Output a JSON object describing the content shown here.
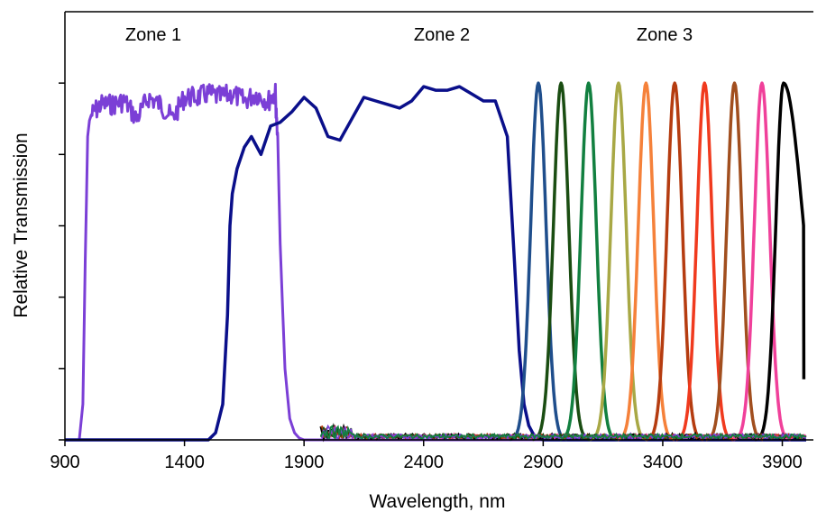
{
  "chart_data": {
    "type": "line",
    "title": "",
    "xlabel": "Wavelength, nm",
    "ylabel": "Relative Transmission",
    "xlim": [
      900,
      4030
    ],
    "ylim": [
      0,
      1.2
    ],
    "x_ticks": [
      "900",
      "1400",
      "1900",
      "2400",
      "2900",
      "3400",
      "3900"
    ],
    "x_tick_values": [
      900,
      1400,
      1900,
      2400,
      2900,
      3400,
      3900
    ],
    "y_tick_values": [
      0,
      0.2,
      0.4,
      0.6,
      0.8,
      1.0
    ],
    "grid": false,
    "legend": "none",
    "annotations": [
      {
        "text": "Zone 1",
        "x": 1250,
        "y": 1.13
      },
      {
        "text": "Zone 2",
        "x": 2420,
        "y": 1.13
      },
      {
        "text": "Zone 3",
        "x": 3300,
        "y": 1.13
      }
    ],
    "series": [
      {
        "color": "#7B3FD6",
        "x": [
          900,
          960,
          975,
          985,
          995,
          1010,
          1050,
          1100,
          1150,
          1200,
          1250,
          1300,
          1350,
          1400,
          1450,
          1500,
          1550,
          1600,
          1650,
          1700,
          1750,
          1780,
          1790,
          1800,
          1820,
          1840,
          1860,
          1880,
          1900,
          4000
        ],
        "y": [
          0,
          0,
          0.1,
          0.5,
          0.85,
          0.94,
          0.97,
          0.97,
          0.98,
          0.93,
          0.99,
          0.97,
          0.93,
          0.99,
          0.99,
          1.0,
          0.99,
          1.0,
          0.98,
          1.0,
          0.98,
          1.0,
          0.85,
          0.55,
          0.2,
          0.06,
          0.02,
          0.005,
          0,
          0
        ]
      },
      {
        "color": "#0A0F8A",
        "x": [
          900,
          1500,
          1530,
          1560,
          1580,
          1590,
          1600,
          1620,
          1650,
          1680,
          1720,
          1760,
          1800,
          1850,
          1900,
          1950,
          2000,
          2050,
          2100,
          2150,
          2200,
          2250,
          2300,
          2350,
          2400,
          2450,
          2500,
          2550,
          2600,
          2650,
          2700,
          2750,
          2780,
          2800,
          2820,
          2840,
          2860,
          2880,
          2900,
          4000
        ],
        "y": [
          0,
          0,
          0.02,
          0.1,
          0.35,
          0.6,
          0.69,
          0.76,
          0.82,
          0.85,
          0.8,
          0.88,
          0.89,
          0.92,
          0.96,
          0.93,
          0.85,
          0.84,
          0.9,
          0.96,
          0.95,
          0.94,
          0.93,
          0.95,
          0.99,
          0.98,
          0.98,
          0.99,
          0.97,
          0.95,
          0.95,
          0.85,
          0.5,
          0.25,
          0.1,
          0.04,
          0.015,
          0.005,
          0,
          0
        ]
      },
      {
        "color": "#1F4E8C",
        "peak": 2880,
        "peak_y": 1.0
      },
      {
        "color": "#1A4D12",
        "peak": 2975,
        "peak_y": 1.0
      },
      {
        "color": "#128040",
        "peak": 3090,
        "peak_y": 1.0
      },
      {
        "color": "#A8A845",
        "peak": 3215,
        "peak_y": 1.0
      },
      {
        "color": "#F5813A",
        "peak": 3330,
        "peak_y": 1.0
      },
      {
        "color": "#B53C10",
        "peak": 3450,
        "peak_y": 1.0
      },
      {
        "color": "#F03A1E",
        "peak": 3575,
        "peak_y": 1.0
      },
      {
        "color": "#A14E1E",
        "peak": 3700,
        "peak_y": 1.0
      },
      {
        "color": "#F0409A",
        "peak": 3815,
        "peak_y": 1.0
      },
      {
        "color": "#000000",
        "peak": 3905,
        "peak_y": 1.0,
        "tail_y": 0.17
      }
    ]
  }
}
